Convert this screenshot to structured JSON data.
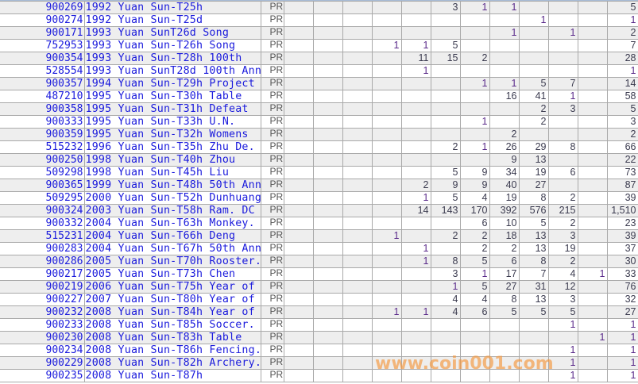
{
  "watermark": "www.coin001.com",
  "colors": {
    "link": "#1a1adc",
    "row_alt": "#eeeeee",
    "grid": "#a9a9a9",
    "watermark": "#f5963c"
  },
  "rows": [
    {
      "id": "900269",
      "name": "1992 Yuan Sun-T25h",
      "grade": "PR",
      "counts": [
        "",
        "",
        "",
        "",
        "",
        "3",
        "1",
        "1",
        "",
        "",
        ""
      ],
      "total": "5"
    },
    {
      "id": "900274",
      "name": "1992 Yuan Sun-T25d",
      "grade": "PR",
      "counts": [
        "",
        "",
        "",
        "",
        "",
        "",
        "",
        "",
        "1",
        "",
        ""
      ],
      "total": "1"
    },
    {
      "id": "900171",
      "name": "1993 Yuan SunT26d Song",
      "grade": "PR",
      "counts": [
        "",
        "",
        "",
        "",
        "",
        "",
        "",
        "1",
        "",
        "1",
        ""
      ],
      "total": "2"
    },
    {
      "id": "752953",
      "name": "1993 Yuan Sun-T26h Song",
      "grade": "PR",
      "counts": [
        "",
        "",
        "",
        "1",
        "1",
        "5",
        "",
        "",
        "",
        "",
        ""
      ],
      "total": "7"
    },
    {
      "id": "900354",
      "name": "1993 Yuan Sun-T28h 100th",
      "grade": "PR",
      "counts": [
        "",
        "",
        "",
        "",
        "11",
        "15",
        "2",
        "",
        "",
        "",
        ""
      ],
      "total": "28"
    },
    {
      "id": "528554",
      "name": "1993 Yuan SunT28d 100th Ann",
      "grade": "PR",
      "counts": [
        "",
        "",
        "",
        "",
        "1",
        "",
        "",
        "",
        "",
        "",
        ""
      ],
      "total": "1"
    },
    {
      "id": "900357",
      "name": "1994 Yuan Sun-T29h Project",
      "grade": "PR",
      "counts": [
        "",
        "",
        "",
        "",
        "",
        "",
        "1",
        "1",
        "5",
        "7",
        ""
      ],
      "total": "14"
    },
    {
      "id": "487210",
      "name": "1995 Yuan Sun-T30h Table",
      "grade": "PR",
      "counts": [
        "",
        "",
        "",
        "",
        "",
        "",
        "",
        "16",
        "41",
        "1",
        ""
      ],
      "total": "58"
    },
    {
      "id": "900358",
      "name": "1995 Yuan Sun-T31h Defeat",
      "grade": "PR",
      "counts": [
        "",
        "",
        "",
        "",
        "",
        "",
        "",
        "",
        "2",
        "3",
        ""
      ],
      "total": "5"
    },
    {
      "id": "900333",
      "name": "1995 Yuan Sun-T33h U.N.",
      "grade": "PR",
      "counts": [
        "",
        "",
        "",
        "",
        "",
        "",
        "1",
        "",
        "2",
        "",
        ""
      ],
      "total": "3"
    },
    {
      "id": "900359",
      "name": "1995 Yuan Sun-T32h Womens",
      "grade": "PR",
      "counts": [
        "",
        "",
        "",
        "",
        "",
        "",
        "",
        "2",
        "",
        "",
        ""
      ],
      "total": "2"
    },
    {
      "id": "515232",
      "name": "1996 Yuan Sun-T35h Zhu De.",
      "grade": "PR",
      "counts": [
        "",
        "",
        "",
        "",
        "",
        "2",
        "1",
        "26",
        "29",
        "8",
        ""
      ],
      "total": "66"
    },
    {
      "id": "900250",
      "name": "1998 Yuan Sun-T40h Zhou",
      "grade": "PR",
      "counts": [
        "",
        "",
        "",
        "",
        "",
        "",
        "",
        "9",
        "13",
        "",
        ""
      ],
      "total": "22"
    },
    {
      "id": "509298",
      "name": "1998 Yuan Sun-T45h Liu",
      "grade": "PR",
      "counts": [
        "",
        "",
        "",
        "",
        "",
        "5",
        "9",
        "34",
        "19",
        "6",
        ""
      ],
      "total": "73"
    },
    {
      "id": "900365",
      "name": "1999 Yuan Sun-T48h 50th Ann",
      "grade": "PR",
      "counts": [
        "",
        "",
        "",
        "",
        "2",
        "9",
        "9",
        "40",
        "27",
        "",
        ""
      ],
      "total": "87"
    },
    {
      "id": "509295",
      "name": "2000 Yuan Sun-T52h Dunhuang",
      "grade": "PR",
      "counts": [
        "",
        "",
        "",
        "",
        "1",
        "5",
        "4",
        "19",
        "8",
        "2",
        ""
      ],
      "total": "39"
    },
    {
      "id": "900324",
      "name": "2003 Yuan Sun-T58h Ram. DC",
      "grade": "PR",
      "counts": [
        "",
        "",
        "",
        "",
        "14",
        "143",
        "170",
        "392",
        "576",
        "215",
        ""
      ],
      "total": "1,510"
    },
    {
      "id": "900332",
      "name": "2004 Yuan Sun-T63h Monkey.",
      "grade": "PR",
      "counts": [
        "",
        "",
        "",
        "",
        "",
        "",
        "6",
        "10",
        "5",
        "2",
        ""
      ],
      "total": "23"
    },
    {
      "id": "515231",
      "name": "2004 Yuan Sun-T66h Deng",
      "grade": "PR",
      "counts": [
        "",
        "",
        "",
        "1",
        "",
        "2",
        "2",
        "18",
        "13",
        "3",
        ""
      ],
      "total": "39"
    },
    {
      "id": "900283",
      "name": "2004 Yuan Sun-T67h 50th Ann",
      "grade": "PR",
      "counts": [
        "",
        "",
        "",
        "",
        "1",
        "",
        "2",
        "2",
        "13",
        "19",
        ""
      ],
      "total": "37"
    },
    {
      "id": "900286",
      "name": "2005 Yuan Sun-T70h Rooster.",
      "grade": "PR",
      "counts": [
        "",
        "",
        "",
        "",
        "1",
        "8",
        "5",
        "6",
        "8",
        "2",
        ""
      ],
      "total": "30"
    },
    {
      "id": "900217",
      "name": "2005 Yuan Sun-T73h Chen",
      "grade": "PR",
      "counts": [
        "",
        "",
        "",
        "",
        "",
        "3",
        "1",
        "17",
        "7",
        "4",
        "1"
      ],
      "total": "33"
    },
    {
      "id": "900219",
      "name": "2006 Yuan Sun-T75h Year of",
      "grade": "PR",
      "counts": [
        "",
        "",
        "",
        "",
        "",
        "1",
        "5",
        "27",
        "31",
        "12",
        ""
      ],
      "total": "76"
    },
    {
      "id": "900227",
      "name": "2007 Yuan Sun-T80h Year of",
      "grade": "PR",
      "counts": [
        "",
        "",
        "",
        "",
        "",
        "4",
        "4",
        "8",
        "13",
        "3",
        ""
      ],
      "total": "32"
    },
    {
      "id": "900232",
      "name": "2008 Yuan Sun-T84h Year of",
      "grade": "PR",
      "counts": [
        "",
        "",
        "",
        "1",
        "1",
        "4",
        "6",
        "5",
        "5",
        "5",
        ""
      ],
      "total": "27"
    },
    {
      "id": "900233",
      "name": "2008 Yuan Sun-T85h Soccer.",
      "grade": "PR",
      "counts": [
        "",
        "",
        "",
        "",
        "",
        "",
        "",
        "",
        "",
        "1",
        ""
      ],
      "total": "1"
    },
    {
      "id": "900230",
      "name": "2008 Yuan Sun-T83h Table",
      "grade": "PR",
      "counts": [
        "",
        "",
        "",
        "",
        "",
        "",
        "",
        "",
        "",
        "",
        "1"
      ],
      "total": "1"
    },
    {
      "id": "900234",
      "name": "2008 Yuan Sun-T86h Fencing.",
      "grade": "PR",
      "counts": [
        "",
        "",
        "",
        "",
        "",
        "",
        "",
        "",
        "",
        "1",
        ""
      ],
      "total": "1"
    },
    {
      "id": "900229",
      "name": "2008 Yuan Sun-T82h Archery.",
      "grade": "PR",
      "counts": [
        "",
        "",
        "",
        "",
        "",
        "",
        "",
        "",
        "",
        "1",
        ""
      ],
      "total": "1"
    },
    {
      "id": "900235",
      "name": "2008 Yuan Sun-T87h",
      "grade": "PR",
      "counts": [
        "",
        "",
        "",
        "",
        "",
        "",
        "",
        "",
        "",
        "1",
        ""
      ],
      "total": "1"
    }
  ]
}
